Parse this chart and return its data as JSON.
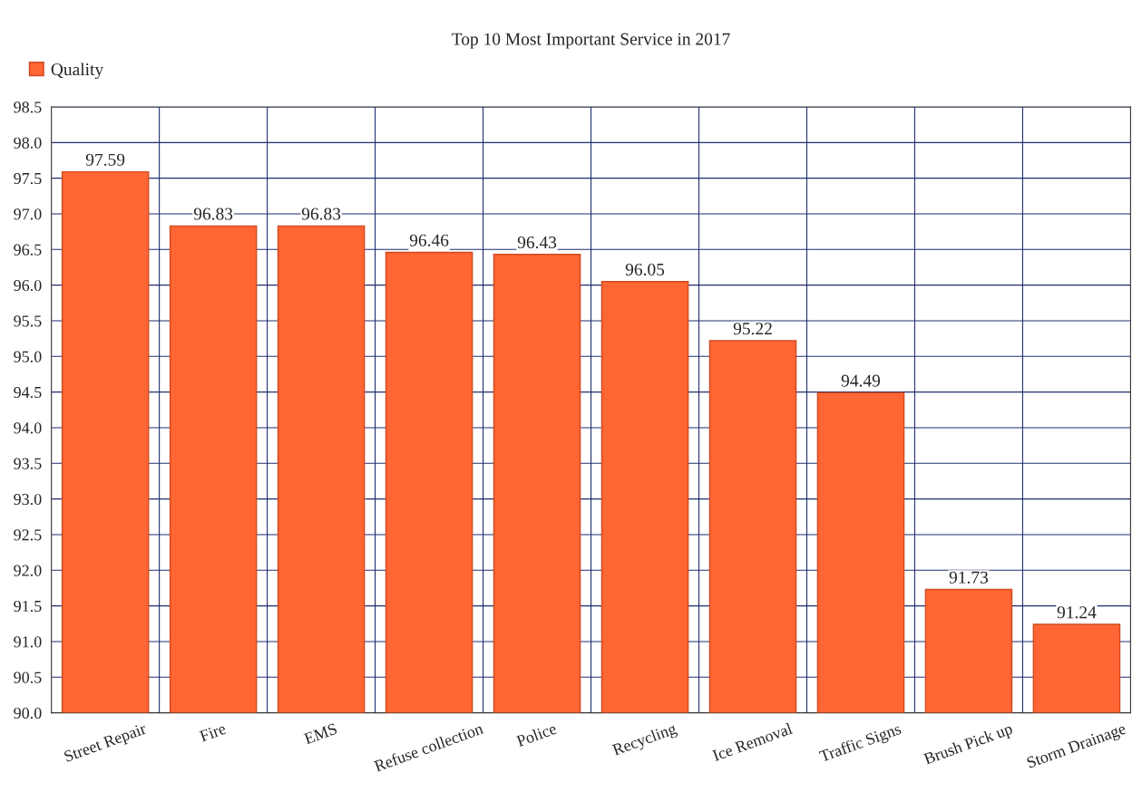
{
  "chart_data": {
    "type": "bar",
    "title": "Top 10 Most Important Service in 2017",
    "categories": [
      "Street Repair",
      "Fire",
      "EMS",
      "Refuse collection",
      "Police",
      "Recycling",
      "Ice Removal",
      "Traffic Signs",
      "Brush Pick up",
      "Storm Drainage"
    ],
    "series": [
      {
        "name": "Quality",
        "color": "#ff6633",
        "values": [
          97.59,
          96.83,
          96.83,
          96.46,
          96.43,
          96.05,
          95.22,
          94.49,
          91.73,
          91.24
        ]
      }
    ],
    "ylim": [
      90,
      98.5
    ],
    "yticks": [
      {
        "value": 90,
        "label": "90.0"
      },
      90.5,
      {
        "value": 91,
        "label": "91.0"
      },
      91.5,
      {
        "value": 92,
        "label": "92.0"
      },
      92.5,
      {
        "value": 93,
        "label": "93.0"
      },
      93.5,
      {
        "value": 94,
        "label": "94.0"
      },
      94.5,
      {
        "value": 95,
        "label": "95.0"
      },
      95.5,
      {
        "value": 96,
        "label": "96.0"
      },
      96.5,
      {
        "value": 97,
        "label": "97.0"
      },
      97.5,
      {
        "value": 98,
        "label": "98.0"
      },
      98.5
    ],
    "grid": true,
    "legend": "top left",
    "data_labels": true
  }
}
